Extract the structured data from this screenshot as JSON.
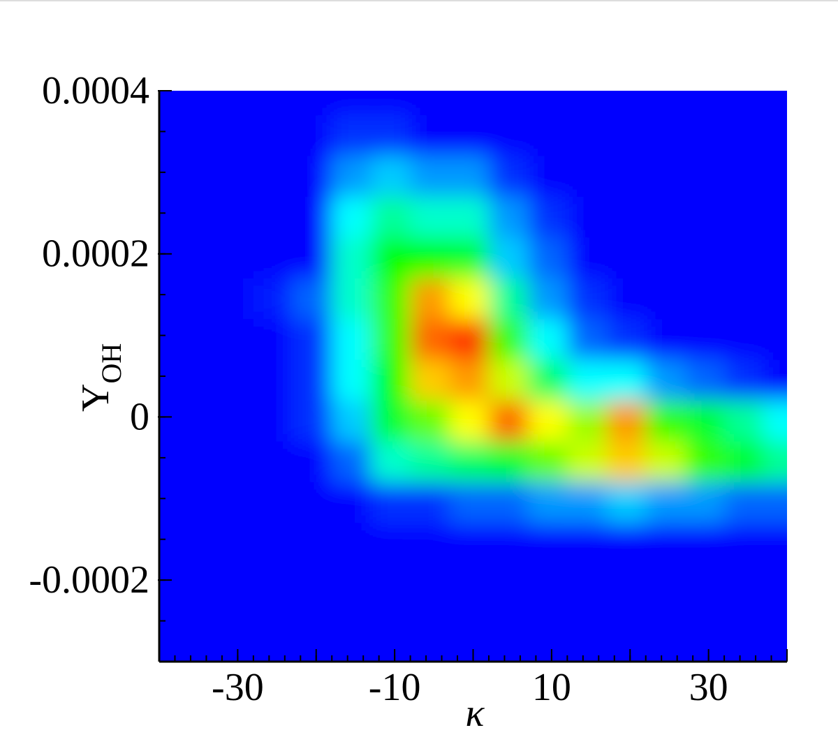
{
  "chart_data": {
    "type": "heatmap",
    "x_label": "κ",
    "y_label": "Y",
    "y_label_sub": "OH",
    "xlim": [
      -40,
      40
    ],
    "ylim": [
      -0.0003,
      0.0004
    ],
    "xticks": [
      -30,
      -10,
      10,
      30
    ],
    "xticks_unlabeled": [
      -40,
      -20,
      0,
      20,
      40
    ],
    "xminor_step": 2,
    "yticks": [
      0.0004,
      0.0002,
      0,
      -0.0002
    ],
    "yminor_step": 5e-05,
    "colors": [
      "#0000ff",
      "#00ffff",
      "#00ff00",
      "#ffff00",
      "#ff0000"
    ],
    "x": [
      -40,
      -35,
      -30,
      -25,
      -20,
      -15,
      -10,
      -5,
      0,
      5,
      10,
      15,
      20,
      25,
      30,
      35,
      40
    ],
    "y": [
      -0.0003,
      -0.00025,
      -0.0002,
      -0.00015,
      -0.0001,
      -5e-05,
      0,
      5e-05,
      0.0001,
      0.00015,
      0.0002,
      0.00025,
      0.0003,
      0.00035,
      0.0004
    ],
    "z": [
      [
        0,
        0,
        0,
        0,
        0,
        0,
        0,
        0,
        0,
        0,
        0,
        0,
        0,
        0,
        0,
        0,
        0
      ],
      [
        0,
        0,
        0,
        0,
        0,
        0,
        0,
        0,
        0,
        0,
        0,
        0,
        0,
        0,
        0,
        0,
        0
      ],
      [
        0,
        0,
        0,
        0,
        0,
        0,
        0,
        0,
        0,
        0,
        0,
        0,
        0,
        0,
        0,
        0,
        0
      ],
      [
        0,
        0,
        0,
        0,
        0,
        0,
        0,
        0,
        0,
        0,
        0,
        0,
        0,
        0,
        0,
        0,
        0
      ],
      [
        0,
        0,
        0,
        0,
        0,
        0,
        0.05,
        0.05,
        0.1,
        0.1,
        0.15,
        0.15,
        0.2,
        0.15,
        0.15,
        0.1,
        0.1
      ],
      [
        0,
        0,
        0,
        0,
        0,
        0.1,
        0.3,
        0.35,
        0.4,
        0.45,
        0.6,
        0.7,
        0.8,
        0.7,
        0.55,
        0.45,
        0.35
      ],
      [
        0,
        0,
        0,
        0,
        0.05,
        0.2,
        0.45,
        0.6,
        0.75,
        0.9,
        0.75,
        0.65,
        0.85,
        0.55,
        0.45,
        0.35,
        0.25
      ],
      [
        0,
        0,
        0,
        0,
        0.05,
        0.25,
        0.5,
        0.8,
        0.85,
        0.7,
        0.4,
        0.25,
        0.25,
        0.15,
        0.1,
        0.05,
        0
      ],
      [
        0,
        0,
        0,
        0,
        0.05,
        0.25,
        0.55,
        0.9,
        0.95,
        0.55,
        0.25,
        0.1,
        0.05,
        0,
        0,
        0,
        0
      ],
      [
        0,
        0,
        0,
        0.03,
        0.1,
        0.3,
        0.55,
        0.85,
        0.75,
        0.35,
        0.15,
        0.05,
        0,
        0,
        0,
        0,
        0
      ],
      [
        0,
        0,
        0,
        0,
        0,
        0.3,
        0.5,
        0.5,
        0.45,
        0.2,
        0.1,
        0,
        0,
        0,
        0,
        0,
        0
      ],
      [
        0,
        0,
        0,
        0,
        0,
        0.25,
        0.35,
        0.3,
        0.3,
        0.15,
        0.05,
        0,
        0,
        0,
        0,
        0,
        0
      ],
      [
        0,
        0,
        0,
        0,
        0,
        0.15,
        0.2,
        0.15,
        0.15,
        0.05,
        0,
        0,
        0,
        0,
        0,
        0,
        0
      ],
      [
        0,
        0,
        0,
        0,
        0,
        0.05,
        0.05,
        0,
        0,
        0,
        0,
        0,
        0,
        0,
        0,
        0,
        0
      ],
      [
        0,
        0,
        0,
        0,
        0,
        0,
        0,
        0,
        0,
        0,
        0,
        0,
        0,
        0,
        0,
        0,
        0
      ]
    ]
  }
}
